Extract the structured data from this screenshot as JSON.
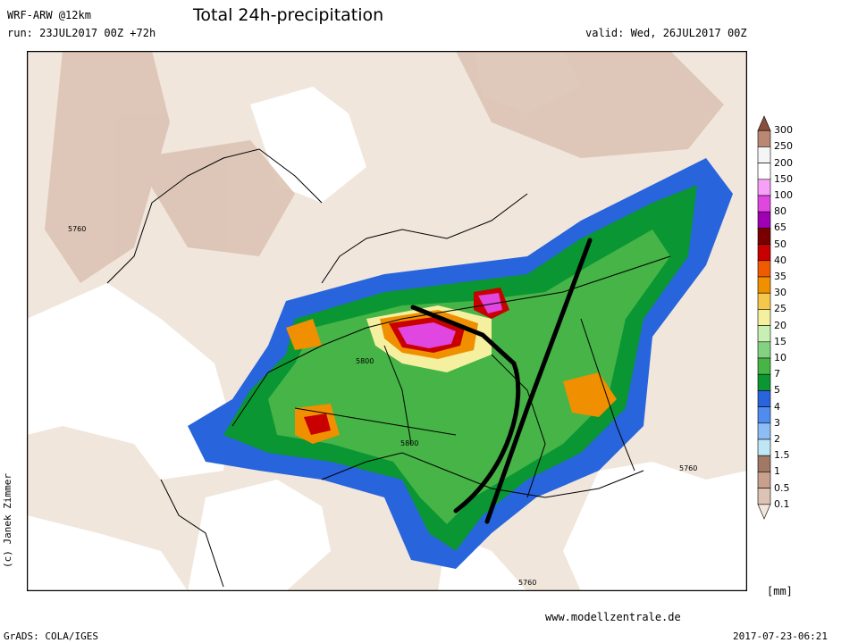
{
  "header": {
    "model": "WRF-ARW @12km",
    "title": "Total 24h-precipitation",
    "run": "run: 23JUL2017 00Z +72h",
    "valid": "valid: Wed, 26JUL2017 00Z"
  },
  "colorbar": {
    "unit": "[mm]",
    "levels": [
      "300",
      "250",
      "200",
      "150",
      "100",
      "80",
      "65",
      "50",
      "40",
      "35",
      "30",
      "25",
      "20",
      "15",
      "10",
      "7",
      "5",
      "4",
      "3",
      "2",
      "1.5",
      "1",
      "0.5",
      "0.1"
    ],
    "colors": [
      "#8a4f3c",
      "#b98772",
      "#f5f5f5",
      "#ffffff",
      "#f7a0f7",
      "#e046e0",
      "#a000b4",
      "#7a0000",
      "#c80000",
      "#f05a00",
      "#f09000",
      "#f5c84c",
      "#f5f0a0",
      "#c8f0b4",
      "#82d282",
      "#46b446",
      "#0a9632",
      "#2864dc",
      "#508cf0",
      "#8cbef5",
      "#bee6f5",
      "#a07864",
      "#c8a08c",
      "#dcc3b4",
      "#f0e6dc"
    ]
  },
  "contour_labels": [
    "5760",
    "5800",
    "5800",
    "5760",
    "5760"
  ],
  "footer": {
    "website": "www.modellzentrale.de",
    "grads": "GrADS: COLA/IGES",
    "timestamp": "2017-07-23-06:21",
    "copyright": "(c) Janek Zimmer"
  }
}
